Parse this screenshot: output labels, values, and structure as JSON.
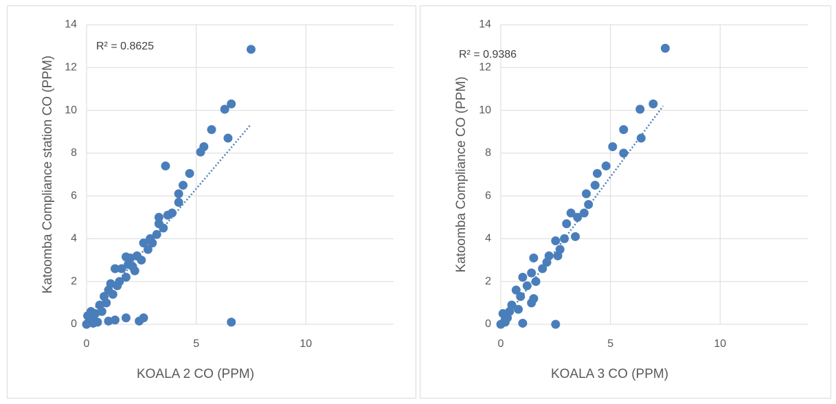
{
  "chart_data": [
    {
      "type": "scatter",
      "x_label": "KOALA 2 CO (PPM)",
      "y_label": "Katoomba Compliance station CO (PPM)",
      "annotation": "R² = 0.8625",
      "color": "#4a7ebb",
      "xlim": [
        0,
        14
      ],
      "ylim": [
        0,
        14
      ],
      "xticks": [
        0,
        5,
        10
      ],
      "yticks": [
        0,
        2,
        4,
        6,
        8,
        10,
        12,
        14
      ],
      "grid": true,
      "x": [
        7.5,
        6.6,
        6.3,
        5.7,
        6.45,
        5.35,
        5.2,
        3.6,
        4.7,
        4.4,
        4.2,
        4.2,
        3.9,
        3.7,
        3.3,
        3.3,
        3.2,
        2.9,
        2.6,
        2.8,
        2.3,
        2.0,
        1.8,
        1.6,
        2.1,
        1.8,
        1.3,
        1.5,
        1.1,
        1.0,
        1.2,
        0.8,
        0.9,
        0.6,
        0.7,
        0.4,
        0.3,
        0.2,
        0.1,
        0.05,
        0,
        0.3,
        0.5,
        1,
        1.8,
        2.4,
        2.6,
        6.6,
        1.3,
        0.2,
        1.4,
        2.5,
        2.2,
        3.5,
        3.0,
        1.9
      ],
      "y": [
        12.85,
        10.3,
        10.05,
        9.1,
        8.7,
        8.3,
        8.05,
        7.4,
        7.05,
        6.5,
        6.1,
        5.7,
        5.2,
        5.1,
        4.7,
        5.0,
        4.2,
        4.0,
        3.8,
        3.5,
        3.2,
        3.1,
        3.15,
        2.6,
        2.7,
        2.2,
        2.6,
        2.0,
        1.9,
        1.6,
        1.4,
        1.3,
        1.0,
        0.9,
        0.6,
        0.5,
        0.3,
        0.2,
        0.1,
        0.4,
        0,
        0.05,
        0.1,
        0.15,
        0.3,
        0.15,
        0.3,
        0.1,
        0.2,
        0.6,
        1.8,
        3.0,
        2.5,
        4.5,
        3.8,
        2.8
      ],
      "trendline": {
        "x": [
          0,
          7.5
        ],
        "y": [
          0.3,
          9.35
        ]
      }
    },
    {
      "type": "scatter",
      "x_label": "KOALA 3 CO (PPM)",
      "y_label": "Katoomba Compliance CO  (PPM)",
      "annotation": "R² = 0.9386",
      "color": "#4a7ebb",
      "xlim": [
        0,
        14
      ],
      "ylim": [
        0,
        14
      ],
      "xticks": [
        0,
        5,
        10
      ],
      "yticks": [
        0,
        2,
        4,
        6,
        8,
        10,
        12,
        14
      ],
      "grid": true,
      "x": [
        7.5,
        6.95,
        6.35,
        5.6,
        6.4,
        5.1,
        5.6,
        4.8,
        4.4,
        4.3,
        3.9,
        4.0,
        3.8,
        3.5,
        3.2,
        3.0,
        3.4,
        2.9,
        2.5,
        2.6,
        2.2,
        1.5,
        1.9,
        1.4,
        1.6,
        1.2,
        1.0,
        1.5,
        1.4,
        0.7,
        0.9,
        0.5,
        0.4,
        0.3,
        0.2,
        0,
        0.1,
        1.0,
        2.5,
        2.1,
        2.7,
        0.8,
        0.2
      ],
      "y": [
        12.9,
        10.3,
        10.05,
        9.1,
        8.7,
        8.3,
        8.0,
        7.4,
        7.05,
        6.5,
        6.1,
        5.6,
        5.2,
        5.0,
        5.2,
        4.7,
        4.1,
        4.0,
        3.9,
        3.2,
        3.2,
        3.1,
        2.6,
        2.4,
        2.0,
        1.8,
        2.2,
        1.2,
        1.0,
        1.6,
        1.3,
        0.9,
        0.6,
        0.3,
        0.1,
        0,
        0.5,
        0.05,
        0.0,
        2.9,
        3.5,
        0.7,
        0.2
      ],
      "trendline": {
        "x": [
          0,
          7.4
        ],
        "y": [
          0.0,
          10.2
        ]
      }
    }
  ]
}
